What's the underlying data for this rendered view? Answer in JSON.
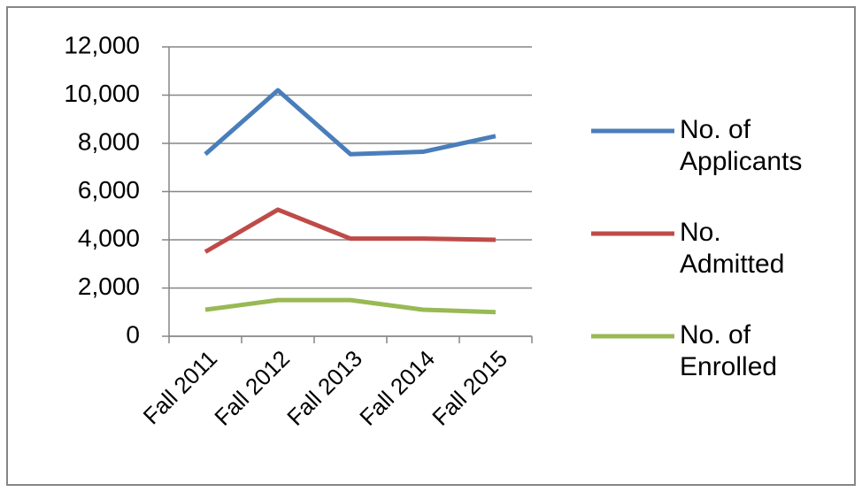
{
  "chart_data": {
    "type": "line",
    "categories": [
      "Fall 2011",
      "Fall 2012",
      "Fall 2013",
      "Fall 2014",
      "Fall 2015"
    ],
    "series": [
      {
        "name": "No. of Applicants",
        "color": "#4a7ebb",
        "values": [
          7550,
          10200,
          7550,
          7650,
          8300
        ]
      },
      {
        "name": "No. Admitted",
        "color": "#be4b48",
        "values": [
          3500,
          5250,
          4050,
          4050,
          4000
        ]
      },
      {
        "name": "No. of Enrolled",
        "color": "#98b954",
        "values": [
          1100,
          1500,
          1500,
          1100,
          1000
        ]
      }
    ],
    "ylim": [
      0,
      12000
    ],
    "yticks": [
      0,
      {
        "value": 2000,
        "label": "2,000"
      },
      {
        "value": 4000,
        "label": "4,000"
      },
      {
        "value": 6000,
        "label": "6,000"
      },
      {
        "value": 8000,
        "label": "8,000"
      },
      {
        "value": 10000,
        "label": "10,000"
      },
      {
        "value": 12000,
        "label": "12,000"
      }
    ],
    "grid": true,
    "legend": "right"
  }
}
